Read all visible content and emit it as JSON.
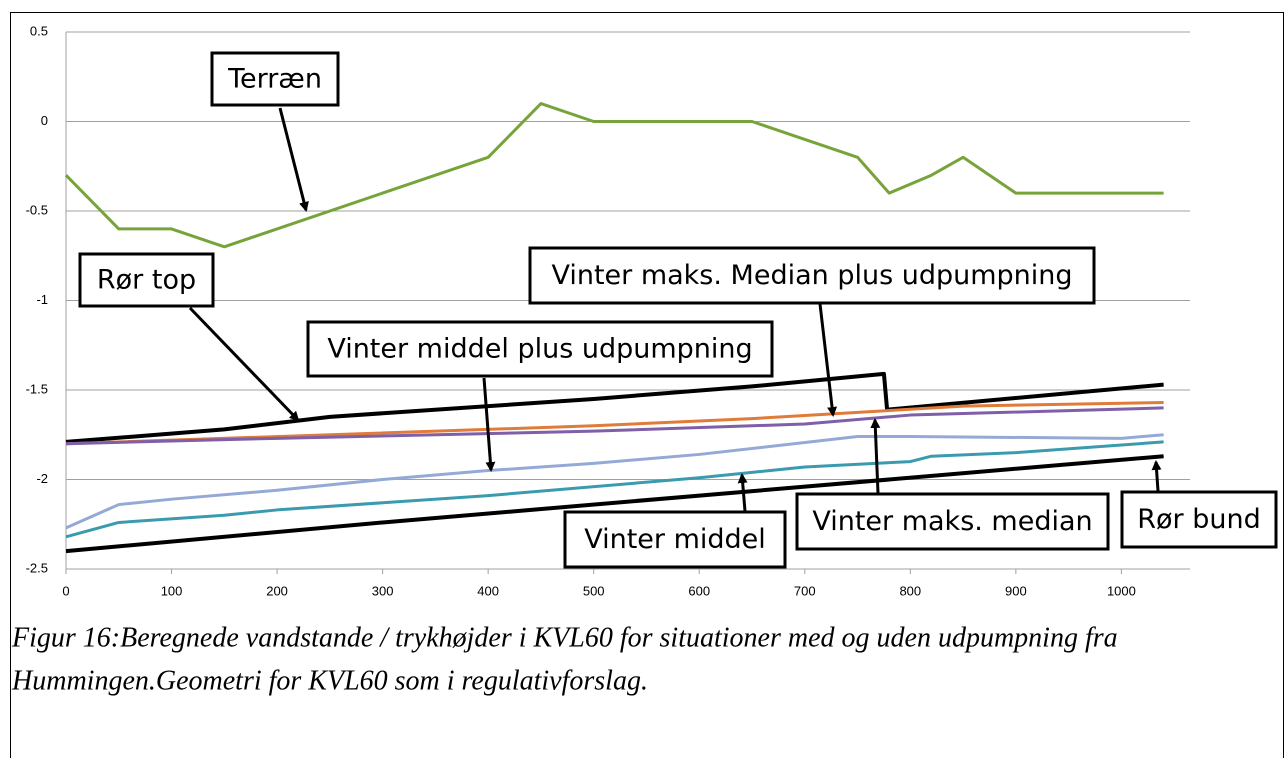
{
  "chart_data": {
    "type": "line",
    "caption": [
      "Figur 16:Beregnede vandstande / trykhøjder i KVL60 for situationer med og uden udpumpning fra",
      "Hummingen.Geometri for KVL60 som i regulativforslag."
    ],
    "xlim": [
      0,
      1065
    ],
    "xticks": [
      0,
      100,
      200,
      300,
      400,
      500,
      600,
      700,
      800,
      900,
      1000
    ],
    "ylim": [
      -2.5,
      0.5
    ],
    "yticks": [
      0.5,
      0,
      -0.5,
      -1,
      -1.5,
      -2,
      -2.5
    ],
    "grid": true,
    "series": [
      {
        "name": "Terræn",
        "color": "#77a33b",
        "x": [
          0,
          50,
          100,
          150,
          200,
          300,
          400,
          450,
          500,
          650,
          750,
          780,
          820,
          850,
          900,
          1040
        ],
        "values": [
          -0.3,
          -0.6,
          -0.6,
          -0.7,
          -0.6,
          -0.4,
          -0.2,
          0.1,
          0,
          0,
          -0.2,
          -0.4,
          -0.3,
          -0.2,
          -0.4,
          -0.4
        ]
      },
      {
        "name": "Rør top",
        "color": "#000000",
        "x": [
          0,
          150,
          250,
          500,
          650,
          775,
          778,
          1040
        ],
        "values": [
          -1.79,
          -1.72,
          -1.65,
          -1.55,
          -1.48,
          -1.41,
          -1.61,
          -1.47
        ]
      },
      {
        "name": "Vinter maks. Median plus udpumpning",
        "color": "#e07b39",
        "x": [
          0,
          500,
          650,
          850,
          1040
        ],
        "values": [
          -1.8,
          -1.7,
          -1.66,
          -1.59,
          -1.57
        ]
      },
      {
        "name": "Vinter maks. median",
        "color": "#7f5fa8",
        "x": [
          0,
          200,
          500,
          700,
          800,
          1040
        ],
        "values": [
          -1.8,
          -1.77,
          -1.73,
          -1.69,
          -1.64,
          -1.6
        ]
      },
      {
        "name": "Vinter middel plus udpumpning",
        "color": "#95a9d6",
        "x": [
          0,
          50,
          100,
          200,
          300,
          400,
          500,
          600,
          750,
          800,
          1000,
          1040
        ],
        "values": [
          -2.27,
          -2.14,
          -2.11,
          -2.06,
          -2,
          -1.95,
          -1.91,
          -1.86,
          -1.76,
          -1.76,
          -1.77,
          -1.75
        ]
      },
      {
        "name": "Vinter middel",
        "color": "#3a9bae",
        "x": [
          0,
          50,
          150,
          200,
          400,
          600,
          700,
          800,
          820,
          900,
          1040
        ],
        "values": [
          -2.32,
          -2.24,
          -2.2,
          -2.17,
          -2.09,
          -1.99,
          -1.93,
          -1.9,
          -1.87,
          -1.85,
          -1.79
        ]
      },
      {
        "name": "Rør bund",
        "color": "#000000",
        "x": [
          0,
          300,
          1040
        ],
        "values": [
          -2.4,
          -2.24,
          -1.87
        ]
      }
    ]
  }
}
